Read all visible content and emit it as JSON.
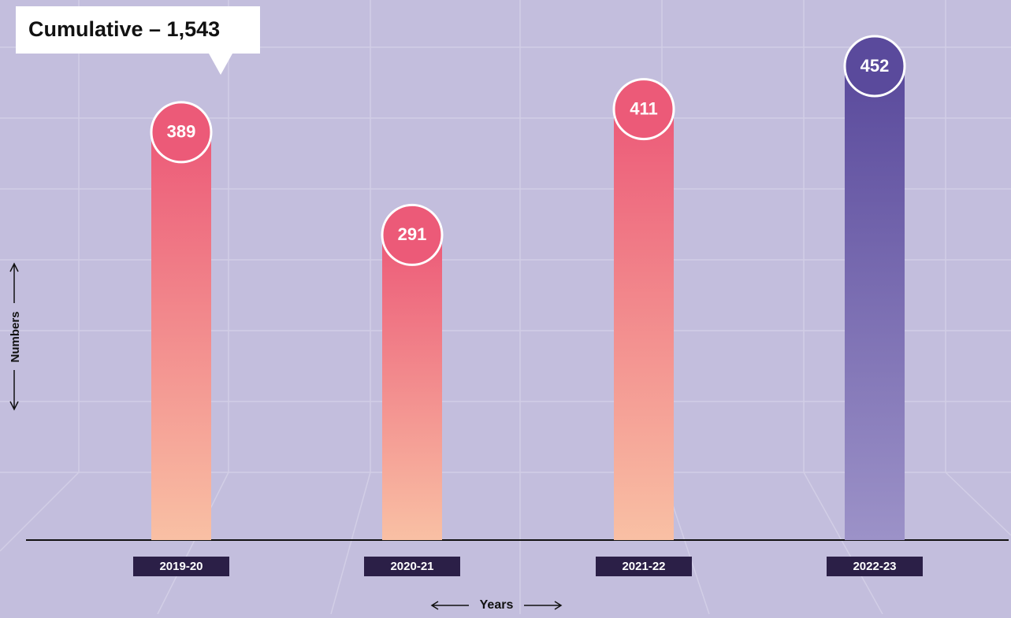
{
  "chart_data": {
    "type": "bar",
    "annotation": "Cumulative – 1,543",
    "y_label": "Numbers",
    "x_label": "Years",
    "categories": [
      "2019-20",
      "2020-21",
      "2021-22",
      "2022-23"
    ],
    "values": [
      389,
      291,
      411,
      452
    ],
    "colors": [
      {
        "top": "#ec5a78",
        "bottom": "#f9c0a4"
      },
      {
        "top": "#ec5a78",
        "bottom": "#f9c0a4"
      },
      {
        "top": "#ec5a78",
        "bottom": "#f9c0a4"
      },
      {
        "top": "#5a4a9c",
        "bottom": "#9c92c8"
      }
    ]
  }
}
